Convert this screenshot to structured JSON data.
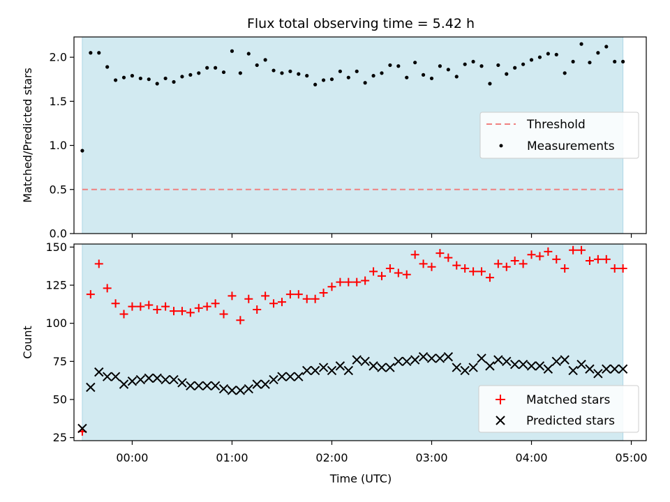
{
  "title": "Flux total observing time = 5.42 h",
  "colors": {
    "background": "#ffffff",
    "observing_span": "#add8e6",
    "threshold": "#f08080",
    "measurements": "#000000",
    "matched": "#ff0000",
    "predicted": "#000000"
  },
  "chart_data": [
    {
      "type": "scatter",
      "ylabel": "Matched/Predicted stars",
      "xlabel": "",
      "ylim": [
        0,
        2.23
      ],
      "xlim": [
        "23:25",
        "05:09"
      ],
      "yticks": [
        0.0,
        0.5,
        1.0,
        1.5,
        2.0
      ],
      "ytick_labels": [
        "0.0",
        "0.5",
        "1.0",
        "1.5",
        "2.0"
      ],
      "shaded_span": [
        "23:30",
        "04:55"
      ],
      "legend_position": "center-right",
      "series": [
        {
          "name": "Threshold",
          "kind": "dashed-line",
          "y": 0.5,
          "x": [
            "23:30",
            "04:55"
          ]
        },
        {
          "name": "Measurements",
          "kind": "points",
          "x": [
            "23:30",
            "23:35",
            "23:40",
            "23:45",
            "23:50",
            "23:55",
            "00:00",
            "00:05",
            "00:10",
            "00:15",
            "00:20",
            "00:25",
            "00:30",
            "00:35",
            "00:40",
            "00:45",
            "00:50",
            "00:55",
            "01:00",
            "01:05",
            "01:10",
            "01:15",
            "01:20",
            "01:25",
            "01:30",
            "01:35",
            "01:40",
            "01:45",
            "01:50",
            "01:55",
            "02:00",
            "02:05",
            "02:10",
            "02:15",
            "02:20",
            "02:25",
            "02:30",
            "02:35",
            "02:40",
            "02:45",
            "02:50",
            "02:55",
            "03:00",
            "03:05",
            "03:10",
            "03:15",
            "03:20",
            "03:25",
            "03:30",
            "03:35",
            "03:40",
            "03:45",
            "03:50",
            "03:55",
            "04:00",
            "04:05",
            "04:10",
            "04:15",
            "04:20",
            "04:25",
            "04:30",
            "04:35",
            "04:40",
            "04:45",
            "04:50",
            "04:55"
          ],
          "y": [
            0.94,
            2.05,
            2.05,
            1.89,
            1.74,
            1.77,
            1.79,
            1.76,
            1.75,
            1.7,
            1.76,
            1.72,
            1.78,
            1.8,
            1.82,
            1.88,
            1.88,
            1.83,
            2.07,
            1.82,
            2.04,
            1.91,
            1.97,
            1.85,
            1.82,
            1.84,
            1.81,
            1.79,
            1.69,
            1.74,
            1.75,
            1.84,
            1.77,
            1.84,
            1.71,
            1.79,
            1.82,
            1.91,
            1.9,
            1.77,
            1.94,
            1.8,
            1.76,
            1.9,
            1.86,
            1.78,
            1.92,
            1.95,
            1.9,
            1.7,
            1.91,
            1.81,
            1.88,
            1.92,
            1.97,
            2.0,
            2.04,
            2.03,
            1.82,
            1.95,
            2.15,
            1.94,
            2.05,
            2.12,
            1.95,
            1.95
          ]
        }
      ]
    },
    {
      "type": "scatter",
      "ylabel": "Count",
      "xlabel": "Time (UTC)",
      "ylim": [
        23,
        152
      ],
      "xlim": [
        "23:25",
        "05:09"
      ],
      "yticks": [
        25,
        50,
        75,
        100,
        125,
        150
      ],
      "ytick_labels": [
        "25",
        "50",
        "75",
        "100",
        "125",
        "150"
      ],
      "xticks": [
        "00:00",
        "01:00",
        "02:00",
        "03:00",
        "04:00",
        "05:00"
      ],
      "xtick_labels": [
        "00:00",
        "01:00",
        "02:00",
        "03:00",
        "04:00",
        "05:00"
      ],
      "shaded_span": [
        "23:30",
        "04:55"
      ],
      "legend_position": "lower-right",
      "series": [
        {
          "name": "Matched stars",
          "marker": "+",
          "x": [
            "23:30",
            "23:35",
            "23:40",
            "23:45",
            "23:50",
            "23:55",
            "00:00",
            "00:05",
            "00:10",
            "00:15",
            "00:20",
            "00:25",
            "00:30",
            "00:35",
            "00:40",
            "00:45",
            "00:50",
            "00:55",
            "01:00",
            "01:05",
            "01:10",
            "01:15",
            "01:20",
            "01:25",
            "01:30",
            "01:35",
            "01:40",
            "01:45",
            "01:50",
            "01:55",
            "02:00",
            "02:05",
            "02:10",
            "02:15",
            "02:20",
            "02:25",
            "02:30",
            "02:35",
            "02:40",
            "02:45",
            "02:50",
            "02:55",
            "03:00",
            "03:05",
            "03:10",
            "03:15",
            "03:20",
            "03:25",
            "03:30",
            "03:35",
            "03:40",
            "03:45",
            "03:50",
            "03:55",
            "04:00",
            "04:05",
            "04:10",
            "04:15",
            "04:20",
            "04:25",
            "04:30",
            "04:35",
            "04:40",
            "04:45",
            "04:50",
            "04:55"
          ],
          "y": [
            29,
            119,
            139,
            123,
            113,
            106,
            111,
            111,
            112,
            109,
            111,
            108,
            108,
            107,
            110,
            111,
            113,
            106,
            118,
            102,
            116,
            109,
            118,
            113,
            114,
            119,
            119,
            116,
            116,
            120,
            124,
            127,
            127,
            127,
            128,
            134,
            131,
            136,
            133,
            132,
            145,
            139,
            137,
            146,
            143,
            138,
            136,
            134,
            134,
            130,
            139,
            137,
            141,
            139,
            145,
            144,
            147,
            142,
            136,
            148,
            148,
            141,
            142,
            142,
            136,
            136
          ]
        },
        {
          "name": "Predicted stars",
          "marker": "x",
          "x": [
            "23:30",
            "23:35",
            "23:40",
            "23:45",
            "23:50",
            "23:55",
            "00:00",
            "00:05",
            "00:10",
            "00:15",
            "00:20",
            "00:25",
            "00:30",
            "00:35",
            "00:40",
            "00:45",
            "00:50",
            "00:55",
            "01:00",
            "01:05",
            "01:10",
            "01:15",
            "01:20",
            "01:25",
            "01:30",
            "01:35",
            "01:40",
            "01:45",
            "01:50",
            "01:55",
            "02:00",
            "02:05",
            "02:10",
            "02:15",
            "02:20",
            "02:25",
            "02:30",
            "02:35",
            "02:40",
            "02:45",
            "02:50",
            "02:55",
            "03:00",
            "03:05",
            "03:10",
            "03:15",
            "03:20",
            "03:25",
            "03:30",
            "03:35",
            "03:40",
            "03:45",
            "03:50",
            "03:55",
            "04:00",
            "04:05",
            "04:10",
            "04:15",
            "04:20",
            "04:25",
            "04:30",
            "04:35",
            "04:40",
            "04:45",
            "04:50",
            "04:55"
          ],
          "y": [
            31,
            58,
            68,
            65,
            65,
            60,
            62,
            63,
            64,
            64,
            63,
            63,
            61,
            59,
            59,
            59,
            59,
            57,
            56,
            56,
            57,
            60,
            60,
            63,
            65,
            65,
            65,
            69,
            69,
            71,
            69,
            72,
            69,
            76,
            75,
            72,
            71,
            71,
            75,
            75,
            76,
            78,
            77,
            77,
            78,
            71,
            69,
            71,
            77,
            72,
            76,
            75,
            73,
            73,
            72,
            72,
            70,
            75,
            76,
            69,
            73,
            70,
            67,
            70,
            70,
            70
          ]
        }
      ]
    }
  ]
}
